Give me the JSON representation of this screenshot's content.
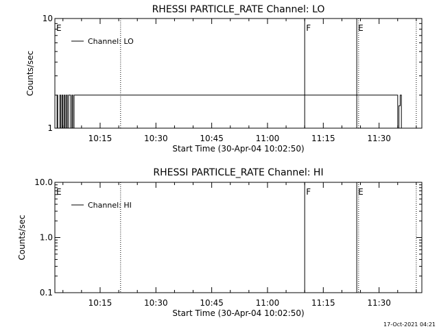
{
  "chart_data": [
    {
      "type": "line",
      "title": "RHESSI PARTICLE_RATE Channel: LO",
      "xlabel": "Start Time (30-Apr-04 10:02:50)",
      "ylabel": "Counts/sec",
      "yscale": "log",
      "ylim": [
        1,
        10
      ],
      "yticks": [
        1,
        10
      ],
      "ytick_labels": [
        "1",
        "10"
      ],
      "xlim": [
        "10:02:50",
        "11:41:30"
      ],
      "xticks": [
        "10:15",
        "10:30",
        "10:45",
        "11:00",
        "11:15",
        "11:30"
      ],
      "legend": {
        "label": "Channel: LO",
        "position": "top-left"
      },
      "markers": [
        {
          "label": "E",
          "time": "10:02:50",
          "style": "solid"
        },
        {
          "label": "",
          "time": "10:20:30",
          "style": "dotted"
        },
        {
          "label": "F",
          "time": "11:10:00",
          "style": "solid"
        },
        {
          "label": "E",
          "time": "11:24:00",
          "style": "solid"
        },
        {
          "label": "",
          "time": "11:24:30",
          "style": "dotted"
        },
        {
          "label": "",
          "time": "11:40:00",
          "style": "dotted"
        }
      ],
      "series": [
        {
          "name": "Channel: LO",
          "x": [
            "10:03:05",
            "10:03:25",
            "10:03:35",
            "10:04:10",
            "10:04:25",
            "10:04:45",
            "10:05:00",
            "10:05:20",
            "10:05:35",
            "10:05:55",
            "10:06:10",
            "10:06:30",
            "10:07:05",
            "10:07:25",
            "10:07:40",
            "10:08:00",
            "11:35:00",
            "11:35:20",
            "11:35:40",
            "11:36:00",
            "11:36:20"
          ],
          "y": [
            1,
            2,
            1,
            2,
            1,
            2,
            1,
            2,
            1,
            2,
            1,
            2,
            1,
            2,
            1,
            2,
            1,
            1.6,
            2,
            1,
            1
          ]
        }
      ]
    },
    {
      "type": "line",
      "title": "RHESSI PARTICLE_RATE Channel: HI",
      "xlabel": "Start Time (30-Apr-04 10:02:50)",
      "ylabel": "Counts/sec",
      "yscale": "log",
      "ylim": [
        0.1,
        10
      ],
      "yticks": [
        0.1,
        1,
        10
      ],
      "ytick_labels": [
        "0.1",
        "1.0",
        "10.0"
      ],
      "xlim": [
        "10:02:50",
        "11:41:30"
      ],
      "xticks": [
        "10:15",
        "10:30",
        "10:45",
        "11:00",
        "11:15",
        "11:30"
      ],
      "legend": {
        "label": "Channel: HI",
        "position": "top-left"
      },
      "markers": [
        {
          "label": "E",
          "time": "10:02:50",
          "style": "solid"
        },
        {
          "label": "",
          "time": "10:20:30",
          "style": "dotted"
        },
        {
          "label": "F",
          "time": "11:10:00",
          "style": "solid"
        },
        {
          "label": "E",
          "time": "11:24:00",
          "style": "solid"
        },
        {
          "label": "",
          "time": "11:24:30",
          "style": "dotted"
        },
        {
          "label": "",
          "time": "11:40:00",
          "style": "dotted"
        }
      ],
      "series": [
        {
          "name": "Channel: HI",
          "x": [],
          "y": []
        }
      ]
    }
  ],
  "timestamp": "17-Oct-2021 04:21"
}
